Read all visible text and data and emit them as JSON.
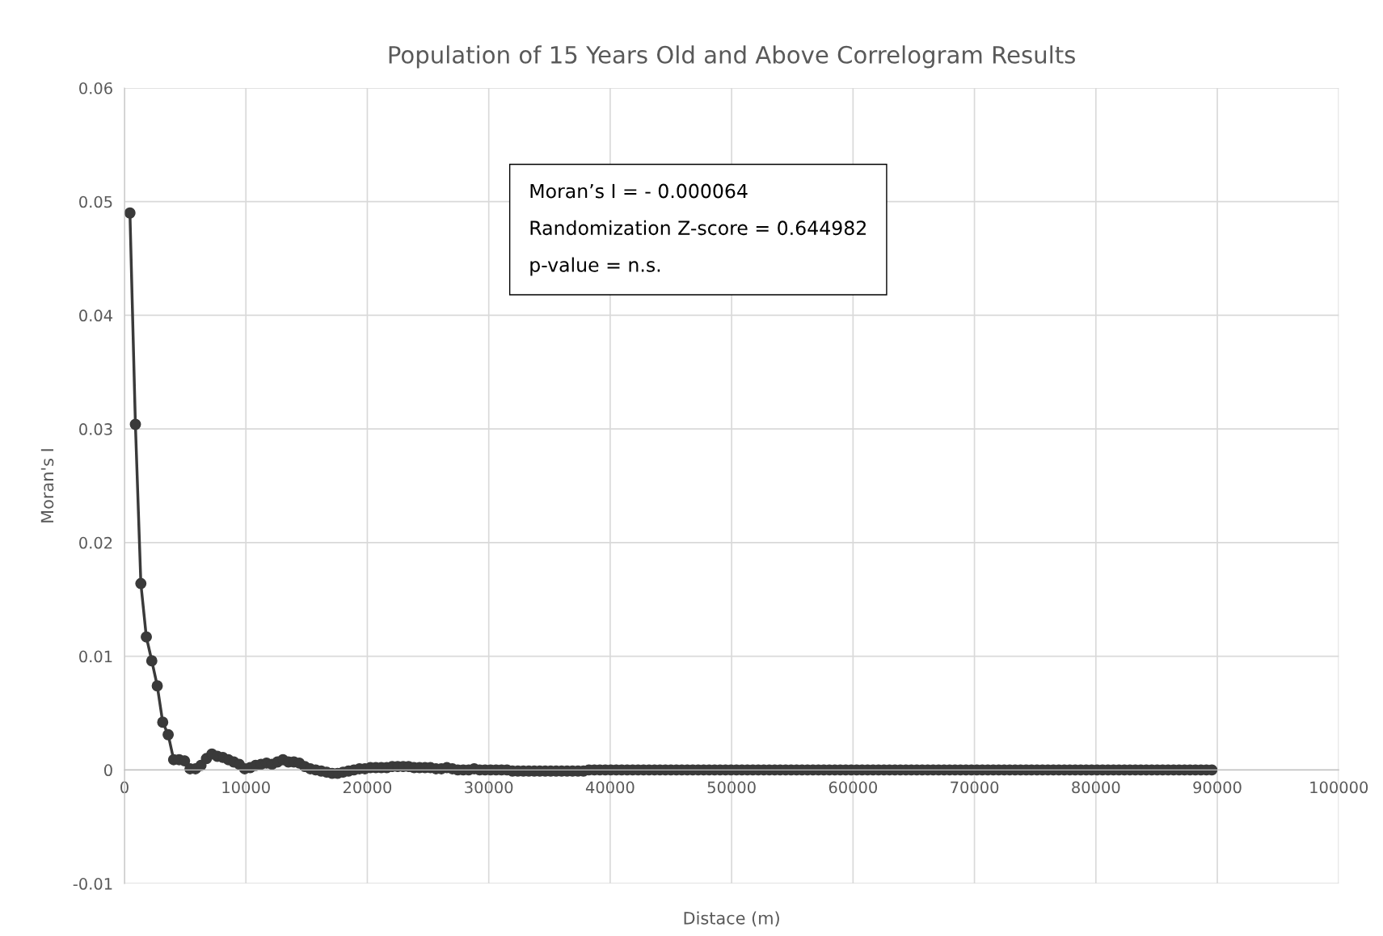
{
  "chart_data": {
    "type": "line",
    "title": "Population of 15 Years Old and Above Correlogram Results",
    "xlabel": "Distace (m)",
    "ylabel": "Moran's I",
    "annotations": [
      "Moran’s I = - 0.000064",
      "Randomization Z-score = 0.644982",
      "p-value = n.s."
    ],
    "series": [
      {
        "color": "#3a3a3a",
        "x": [
          450,
          900,
          1350,
          1800,
          2250,
          2700,
          3150,
          3600,
          4050,
          4500,
          4950,
          5400,
          5850,
          6300,
          6750,
          7200,
          7650,
          8100,
          8550,
          9000,
          9450,
          9900,
          10350,
          10800,
          11250,
          11700,
          12150,
          12600,
          13050,
          13500,
          13950,
          14400,
          14850,
          15300,
          15750,
          16200,
          16650,
          17100,
          17550,
          18000,
          18450,
          18900,
          19350,
          19800,
          20250,
          20700,
          21150,
          21600,
          22050,
          22500,
          22950,
          23400,
          23850,
          24300,
          24750,
          25200,
          25650,
          26100,
          26550,
          27000,
          27450,
          27900,
          28350,
          28800,
          29250,
          29700,
          30150,
          30600,
          31050,
          31500,
          31950,
          32400,
          32850,
          33300,
          33750,
          34200,
          34650,
          35100,
          35550,
          36000,
          36450,
          36900,
          37350,
          37800,
          38250,
          38700,
          39150,
          39600,
          40050,
          40500,
          40950,
          41400,
          41850,
          42300,
          42750,
          43200,
          43650,
          44100,
          44550,
          45000,
          45450,
          45900,
          46350,
          46800,
          47250,
          47700,
          48150,
          48600,
          49050,
          49500,
          49950,
          50400,
          50850,
          51300,
          51750,
          52200,
          52650,
          53100,
          53550,
          54000,
          54450,
          54900,
          55350,
          55800,
          56250,
          56700,
          57150,
          57600,
          58050,
          58500,
          58950,
          59400,
          59850,
          60300,
          60750,
          61200,
          61650,
          62100,
          62550,
          63000,
          63450,
          63900,
          64350,
          64800,
          65250,
          65700,
          66150,
          66600,
          67050,
          67500,
          67950,
          68400,
          68850,
          69300,
          69750,
          70200,
          70650,
          71100,
          71550,
          72000,
          72450,
          72900,
          73350,
          73800,
          74250,
          74700,
          75150,
          75600,
          76050,
          76500,
          76950,
          77400,
          77850,
          78300,
          78750,
          79200,
          79650,
          80100,
          80550,
          81000,
          81450,
          81900,
          82350,
          82800,
          83250,
          83700,
          84150,
          84600,
          85050,
          85500,
          85950,
          86400,
          86850,
          87300,
          87750,
          88200,
          88650,
          89100,
          89550
        ],
        "values": [
          0.049,
          0.0304,
          0.0164,
          0.0117,
          0.0096,
          0.0074,
          0.0042,
          0.0031,
          0.0009,
          0.0009,
          0.0008,
          0.0001,
          0.0001,
          0.0004,
          0.001,
          0.0014,
          0.0012,
          0.0011,
          0.0009,
          0.0007,
          0.0005,
          0.0001,
          0.0002,
          0.0004,
          0.0005,
          0.0006,
          0.0005,
          0.0007,
          0.0009,
          0.0007,
          0.0007,
          0.0006,
          0.0003,
          0.0001,
          0.0,
          -0.0001,
          -0.0002,
          -0.0003,
          -0.0003,
          -0.0002,
          -0.0001,
          0.0,
          0.0001,
          0.0001,
          0.0002,
          0.0002,
          0.0002,
          0.0002,
          0.0003,
          0.0003,
          0.0003,
          0.0003,
          0.0002,
          0.0002,
          0.0002,
          0.0002,
          0.0001,
          0.0001,
          0.0002,
          0.0001,
          0.0,
          0.0,
          0.0,
          0.0001,
          0.0,
          0,
          0,
          0,
          0,
          0,
          -0.0001,
          -0.0001,
          -0.0001,
          -0.0001,
          -0.0001,
          -0.0001,
          -0.0001,
          -0.0001,
          -0.0001,
          -0.0001,
          -0.0001,
          -0.0001,
          -0.0001,
          -0.0001,
          0,
          0,
          0,
          0,
          0,
          0,
          0,
          0,
          0,
          0,
          0,
          0,
          0,
          0,
          0,
          0,
          0,
          0,
          0,
          0,
          0,
          0,
          0,
          0,
          0,
          0,
          0,
          0,
          0,
          0,
          0,
          0,
          0,
          0,
          0,
          0,
          0,
          0,
          0,
          0,
          0,
          0,
          0,
          0,
          0,
          0,
          0,
          0,
          0,
          0,
          0,
          0,
          0,
          0,
          0,
          0,
          0,
          0,
          0,
          0,
          0,
          0,
          0,
          0,
          0,
          0,
          0,
          0,
          0,
          0,
          0,
          0,
          0,
          0,
          0,
          0,
          0,
          0,
          0,
          0,
          0,
          0,
          0,
          0,
          0,
          0,
          0,
          0,
          0,
          0,
          0,
          0,
          0,
          0,
          0,
          0,
          0,
          0,
          0,
          0,
          0,
          0,
          0,
          0,
          0,
          0,
          0,
          0,
          0,
          0,
          0,
          0,
          0,
          0,
          0
        ]
      }
    ],
    "xlim": [
      0,
      100000
    ],
    "xticks": [
      0,
      10000,
      20000,
      30000,
      40000,
      50000,
      60000,
      70000,
      80000,
      90000,
      100000
    ],
    "ylim": [
      -0.01,
      0.06
    ],
    "yticks": [
      -0.01,
      0,
      0.01,
      0.02,
      0.03,
      0.04,
      0.05,
      0.06
    ],
    "grid": true,
    "marker": "circle",
    "line_style": "solid"
  }
}
